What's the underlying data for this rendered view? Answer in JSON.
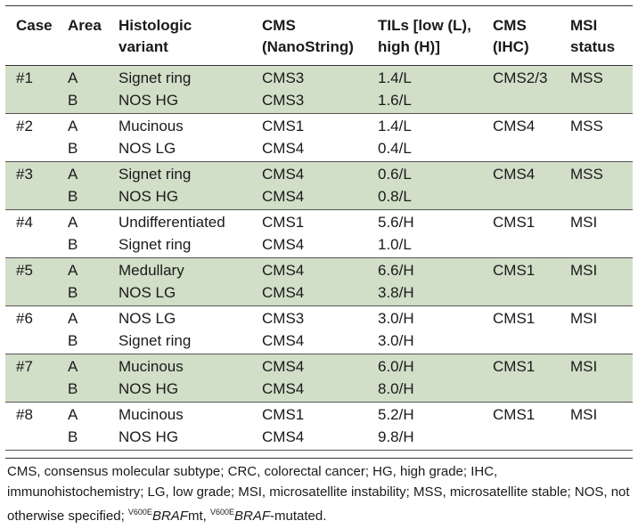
{
  "headers": {
    "case": "Case",
    "area": "Area",
    "variant": [
      "Histologic",
      "variant"
    ],
    "cms_ns": [
      "CMS",
      "(NanoString)"
    ],
    "tils": [
      "TILs [low (L),",
      "high (H)]"
    ],
    "cms_ihc": [
      "CMS",
      "(IHC)"
    ],
    "msi": [
      "MSI",
      "status"
    ]
  },
  "rows": [
    {
      "case": "#1",
      "a": {
        "area": "A",
        "variant": "Signet ring",
        "cms_ns": "CMS3",
        "tils": "1.4/L"
      },
      "b": {
        "area": "B",
        "variant": "NOS HG",
        "cms_ns": "CMS3",
        "tils": "1.6/L"
      },
      "cms_ihc": "CMS2/3",
      "msi": "MSS",
      "shaded": true
    },
    {
      "case": "#2",
      "a": {
        "area": "A",
        "variant": "Mucinous",
        "cms_ns": "CMS1",
        "tils": "1.4/L"
      },
      "b": {
        "area": "B",
        "variant": "NOS LG",
        "cms_ns": "CMS4",
        "tils": "0.4/L"
      },
      "cms_ihc": "CMS4",
      "msi": "MSS",
      "shaded": false
    },
    {
      "case": "#3",
      "a": {
        "area": "A",
        "variant": "Signet ring",
        "cms_ns": "CMS4",
        "tils": "0.6/L"
      },
      "b": {
        "area": "B",
        "variant": "NOS HG",
        "cms_ns": "CMS4",
        "tils": "0.8/L"
      },
      "cms_ihc": "CMS4",
      "msi": "MSS",
      "shaded": true
    },
    {
      "case": "#4",
      "a": {
        "area": "A",
        "variant": "Undifferentiated",
        "cms_ns": "CMS1",
        "tils": "5.6/H"
      },
      "b": {
        "area": "B",
        "variant": "Signet ring",
        "cms_ns": "CMS4",
        "tils": "1.0/L"
      },
      "cms_ihc": "CMS1",
      "msi": "MSI",
      "shaded": false
    },
    {
      "case": "#5",
      "a": {
        "area": "A",
        "variant": "Medullary",
        "cms_ns": "CMS4",
        "tils": "6.6/H"
      },
      "b": {
        "area": "B",
        "variant": "NOS LG",
        "cms_ns": "CMS4",
        "tils": "3.8/H"
      },
      "cms_ihc": "CMS1",
      "msi": "MSI",
      "shaded": true
    },
    {
      "case": "#6",
      "a": {
        "area": "A",
        "variant": "NOS LG",
        "cms_ns": "CMS3",
        "tils": "3.0/H"
      },
      "b": {
        "area": "B",
        "variant": "Signet ring",
        "cms_ns": "CMS4",
        "tils": "3.0/H"
      },
      "cms_ihc": "CMS1",
      "msi": "MSI",
      "shaded": false
    },
    {
      "case": "#7",
      "a": {
        "area": "A",
        "variant": "Mucinous",
        "cms_ns": "CMS4",
        "tils": "6.0/H"
      },
      "b": {
        "area": "B",
        "variant": "NOS HG",
        "cms_ns": "CMS4",
        "tils": "8.0/H"
      },
      "cms_ihc": "CMS1",
      "msi": "MSI",
      "shaded": true
    },
    {
      "case": "#8",
      "a": {
        "area": "A",
        "variant": "Mucinous",
        "cms_ns": "CMS1",
        "tils": "5.2/H"
      },
      "b": {
        "area": "B",
        "variant": "NOS HG",
        "cms_ns": "CMS4",
        "tils": "9.8/H"
      },
      "cms_ihc": "CMS1",
      "msi": "MSI",
      "shaded": false
    }
  ],
  "footnote": {
    "text1": "CMS, consensus molecular subtype; CRC, colorectal cancer; HG, high grade; IHC, immunohistochemistry; LG, low grade; MSI, microsatellite instability; MSS, microsatellite stable; NOS, not otherwise specified; ",
    "sup1": "V600E",
    "italic1": "BRAF",
    "text2": "mt, ",
    "sup2": "V600E",
    "italic2": "BRAF",
    "text3": "-mutated."
  },
  "colors": {
    "shaded_row": "#d1dec8",
    "rule": "#333333"
  }
}
